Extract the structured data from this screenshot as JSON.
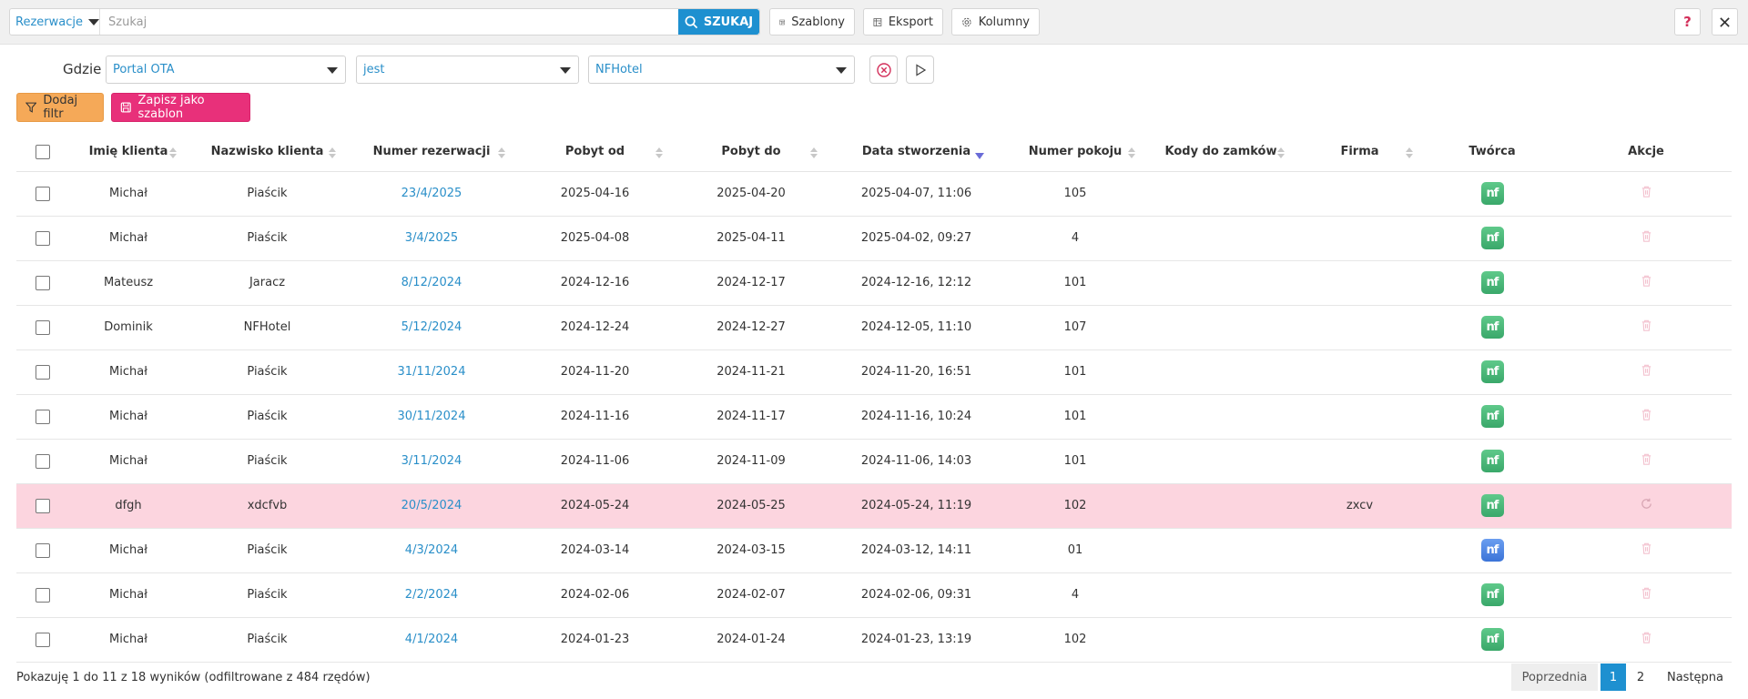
{
  "toolbar": {
    "entity": "Rezerwacje",
    "search_placeholder": "Szukaj",
    "search_label": "SZUKAJ",
    "templates_label": "Szablony",
    "export_label": "Eksport",
    "columns_label": "Kolumny",
    "help_label": "?"
  },
  "filter": {
    "where_label": "Gdzie",
    "field": "Portal OTA",
    "operator": "jest",
    "value": "NFHotel",
    "add_filter_label": "Dodaj filtr",
    "save_template_label": "Zapisz jako szablon"
  },
  "table": {
    "headers": {
      "first_name": "Imię klienta",
      "last_name": "Nazwisko klienta",
      "reservation_no": "Numer rezerwacji",
      "stay_from": "Pobyt od",
      "stay_to": "Pobyt do",
      "created": "Data stworzenia",
      "room_no": "Numer pokoju",
      "lock_codes": "Kody do zamków",
      "company": "Firma",
      "creator": "Twórca",
      "actions": "Akcje"
    },
    "creator_badge": "nf",
    "rows": [
      {
        "first_name": "Michał",
        "last_name": "Piaścik",
        "reservation_no": "23/4/2025",
        "stay_from": "2025-04-16",
        "stay_to": "2025-04-20",
        "created": "2025-04-07, 11:06",
        "room_no": "105",
        "lock_codes": "",
        "company": "",
        "creator_color": "green",
        "highlight": false
      },
      {
        "first_name": "Michał",
        "last_name": "Piaścik",
        "reservation_no": "3/4/2025",
        "stay_from": "2025-04-08",
        "stay_to": "2025-04-11",
        "created": "2025-04-02, 09:27",
        "room_no": "4",
        "lock_codes": "",
        "company": "",
        "creator_color": "green",
        "highlight": false
      },
      {
        "first_name": "Mateusz",
        "last_name": "Jaracz",
        "reservation_no": "8/12/2024",
        "stay_from": "2024-12-16",
        "stay_to": "2024-12-17",
        "created": "2024-12-16, 12:12",
        "room_no": "101",
        "lock_codes": "",
        "company": "",
        "creator_color": "green",
        "highlight": false
      },
      {
        "first_name": "Dominik",
        "last_name": "NFHotel",
        "reservation_no": "5/12/2024",
        "stay_from": "2024-12-24",
        "stay_to": "2024-12-27",
        "created": "2024-12-05, 11:10",
        "room_no": "107",
        "lock_codes": "",
        "company": "",
        "creator_color": "green",
        "highlight": false
      },
      {
        "first_name": "Michał",
        "last_name": "Piaścik",
        "reservation_no": "31/11/2024",
        "stay_from": "2024-11-20",
        "stay_to": "2024-11-21",
        "created": "2024-11-20, 16:51",
        "room_no": "101",
        "lock_codes": "",
        "company": "",
        "creator_color": "green",
        "highlight": false
      },
      {
        "first_name": "Michał",
        "last_name": "Piaścik",
        "reservation_no": "30/11/2024",
        "stay_from": "2024-11-16",
        "stay_to": "2024-11-17",
        "created": "2024-11-16, 10:24",
        "room_no": "101",
        "lock_codes": "",
        "company": "",
        "creator_color": "green",
        "highlight": false
      },
      {
        "first_name": "Michał",
        "last_name": "Piaścik",
        "reservation_no": "3/11/2024",
        "stay_from": "2024-11-06",
        "stay_to": "2024-11-09",
        "created": "2024-11-06, 14:03",
        "room_no": "101",
        "lock_codes": "",
        "company": "",
        "creator_color": "green",
        "highlight": false
      },
      {
        "first_name": "dfgh",
        "last_name": "xdcfvb",
        "reservation_no": "20/5/2024",
        "stay_from": "2024-05-24",
        "stay_to": "2024-05-25",
        "created": "2024-05-24, 11:19",
        "room_no": "102",
        "lock_codes": "",
        "company": "zxcv",
        "creator_color": "green",
        "highlight": true
      },
      {
        "first_name": "Michał",
        "last_name": "Piaścik",
        "reservation_no": "4/3/2024",
        "stay_from": "2024-03-14",
        "stay_to": "2024-03-15",
        "created": "2024-03-12, 14:11",
        "room_no": "01",
        "lock_codes": "",
        "company": "",
        "creator_color": "blue",
        "highlight": false
      },
      {
        "first_name": "Michał",
        "last_name": "Piaścik",
        "reservation_no": "2/2/2024",
        "stay_from": "2024-02-06",
        "stay_to": "2024-02-07",
        "created": "2024-02-06, 09:31",
        "room_no": "4",
        "lock_codes": "",
        "company": "",
        "creator_color": "green",
        "highlight": false
      },
      {
        "first_name": "Michał",
        "last_name": "Piaścik",
        "reservation_no": "4/1/2024",
        "stay_from": "2024-01-23",
        "stay_to": "2024-01-24",
        "created": "2024-01-23, 13:19",
        "room_no": "102",
        "lock_codes": "",
        "company": "",
        "creator_color": "green",
        "highlight": false
      }
    ]
  },
  "footer": {
    "info": "Pokazuję 1 do 11 z 18 wyników (odfiltrowane z 484 rzędów)",
    "prev_label": "Poprzednia",
    "pages": [
      "1",
      "2"
    ],
    "current_page": "1",
    "next_label": "Następna"
  },
  "colors": {
    "accent": "#1e90d0",
    "link": "#2a8fc9",
    "highlight_row": "#fcd5df",
    "add_filter": "#f5a958",
    "save_template": "#e8307a",
    "creator_green": "#3aa86a",
    "creator_blue": "#3b74d8"
  },
  "icons": [
    "search-icon",
    "templates-icon",
    "export-icon",
    "gear-icon",
    "help-icon",
    "close-icon",
    "filter-icon",
    "save-icon",
    "clear-filter-icon",
    "play-icon",
    "trash-icon",
    "restore-icon",
    "sort-icon"
  ]
}
